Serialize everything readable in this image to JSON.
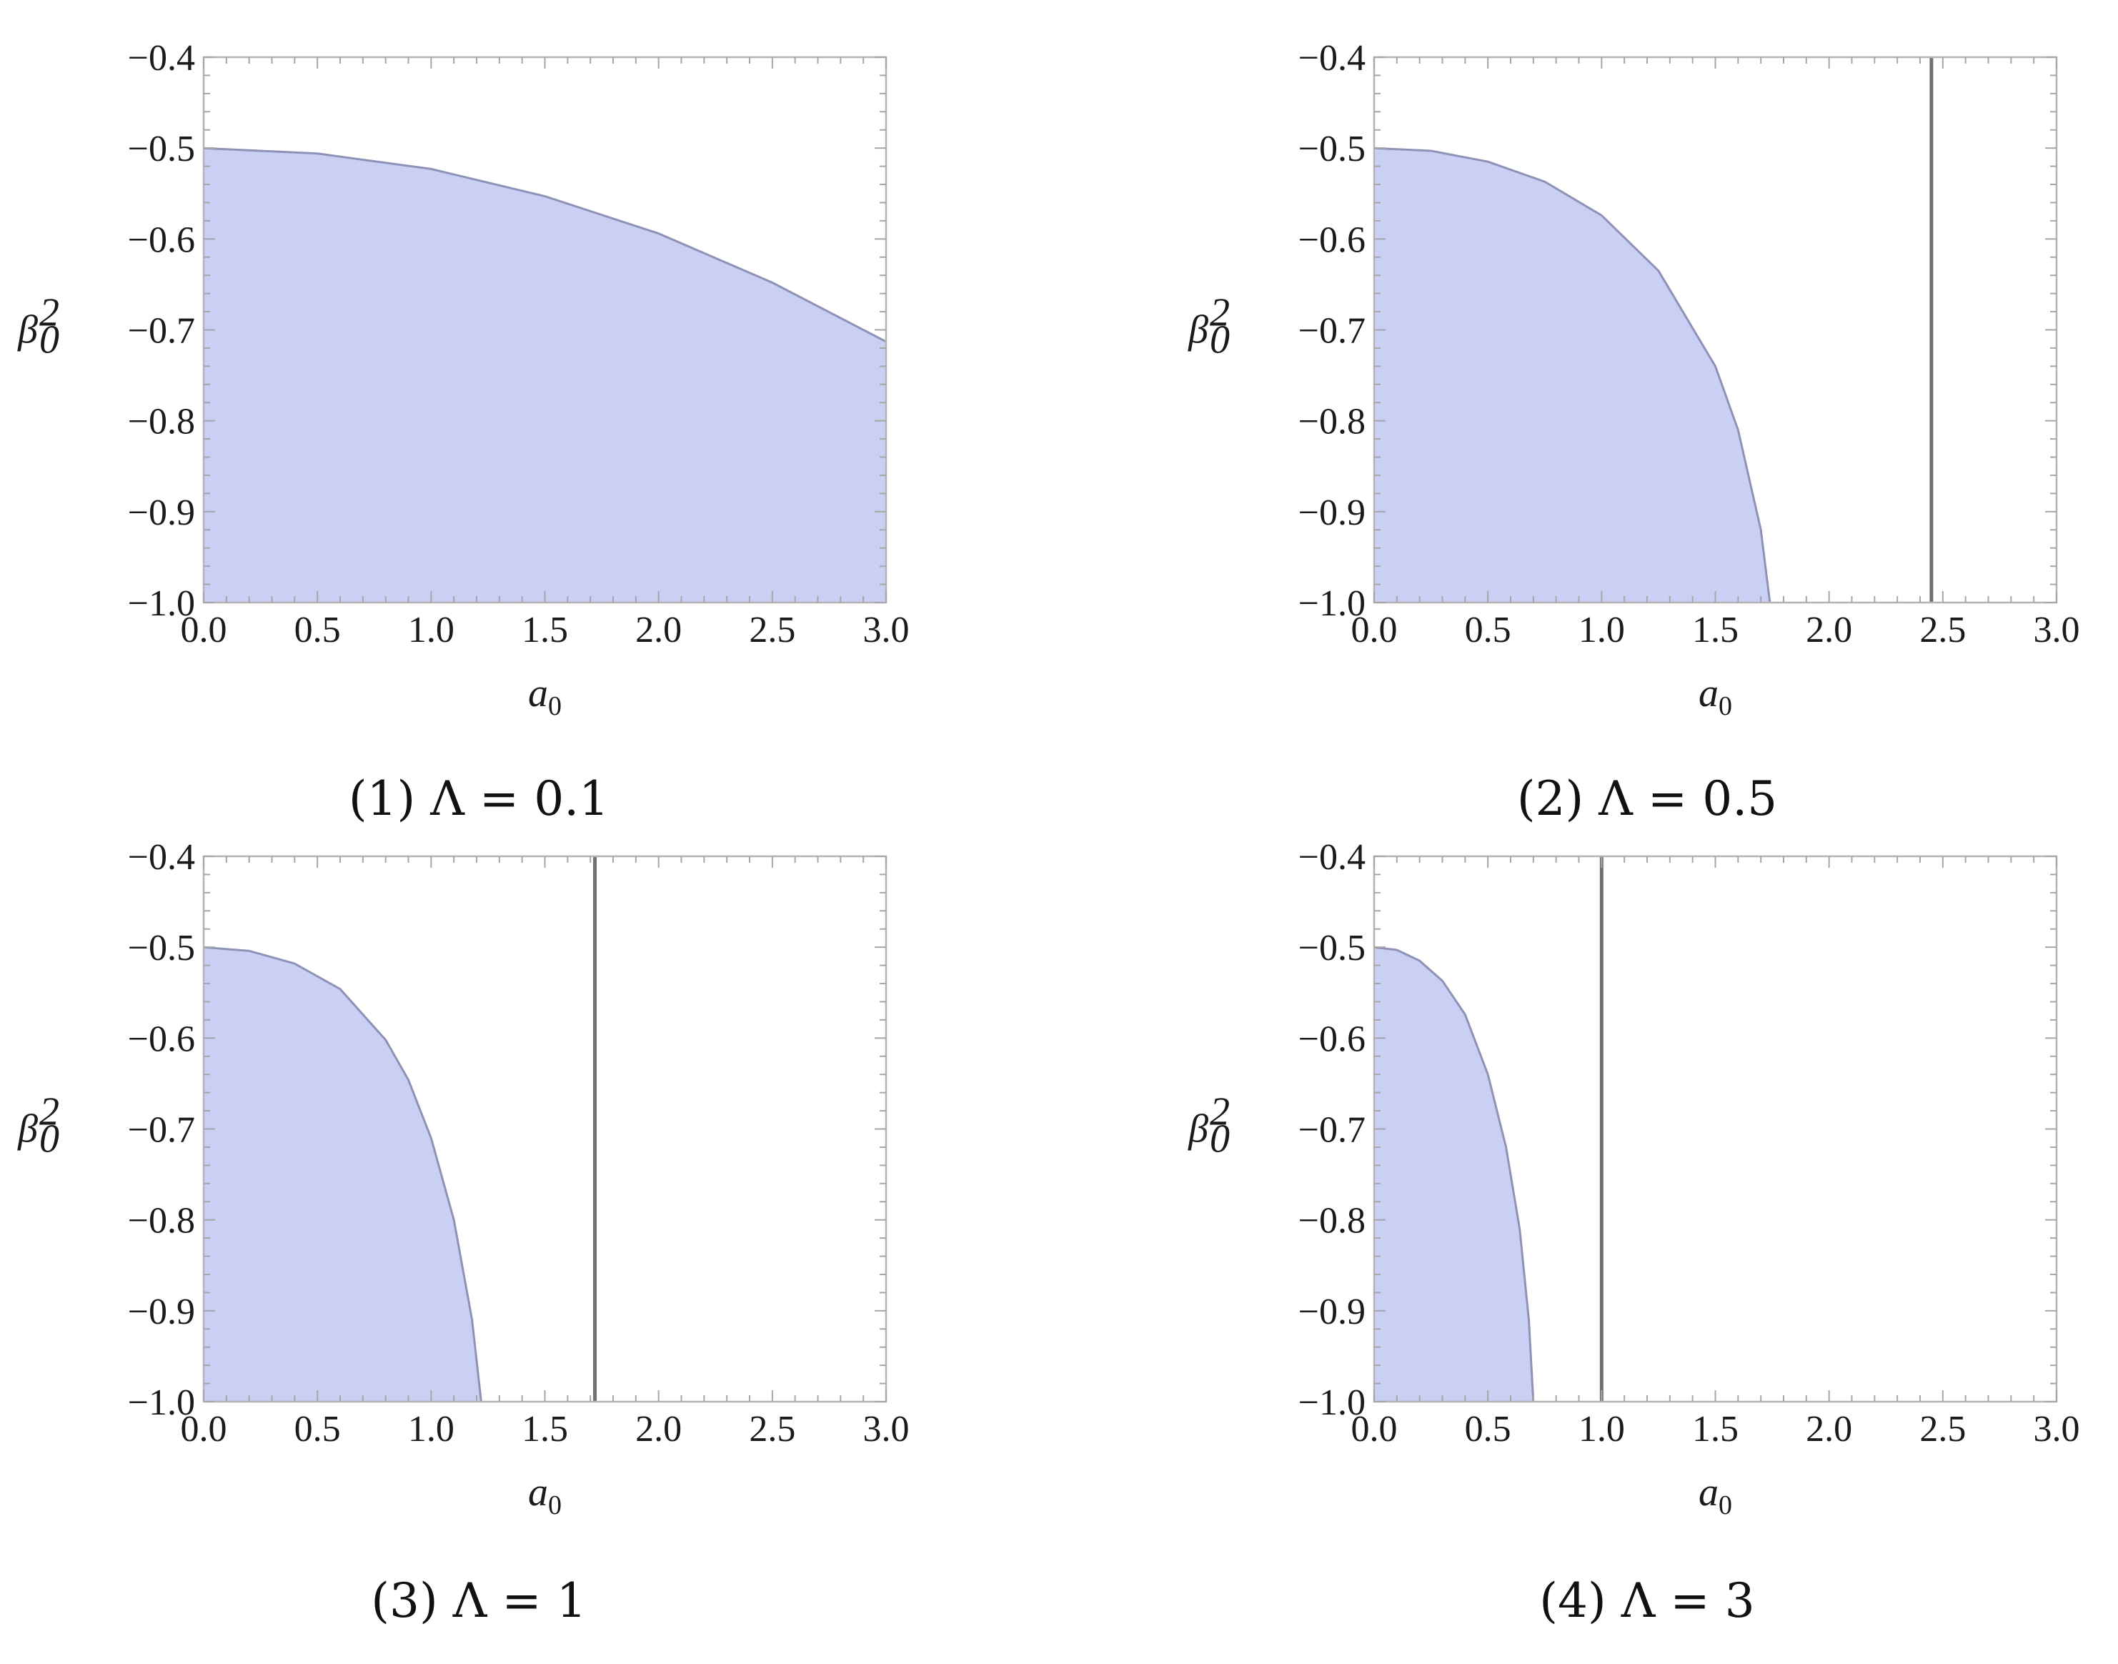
{
  "colors": {
    "region_fill": "#cacff4",
    "region_edge": "#8e92b8",
    "boundary_line": "#707070",
    "frame": "#b4b4b4",
    "tick": "#a6a6a6"
  },
  "chart_data": [
    {
      "type": "area",
      "caption": "(1) Λ = 0.1",
      "xlabel": {
        "base": "a",
        "sub": "0"
      },
      "ylabel": {
        "base": "β",
        "sub": "0",
        "sup": "2"
      },
      "xlim": [
        0,
        3
      ],
      "ylim": [
        -1.0,
        -0.4
      ],
      "x_ticks": [
        "0.0",
        "0.5",
        "1.0",
        "1.5",
        "2.0",
        "2.5",
        "3.0"
      ],
      "y_ticks": [
        "−0.4",
        "−0.5",
        "−0.6",
        "−0.7",
        "−0.8",
        "−0.9",
        "−1.0"
      ],
      "region_top": {
        "x": [
          0,
          0.5,
          1.0,
          1.5,
          2.0,
          2.5,
          3.0
        ],
        "y": [
          -0.5,
          -0.506,
          -0.523,
          -0.553,
          -0.594,
          -0.648,
          -0.713
        ]
      },
      "vertical_line_x": null
    },
    {
      "type": "area",
      "caption": "(2) Λ = 0.5",
      "xlabel": {
        "base": "a",
        "sub": "0"
      },
      "ylabel": {
        "base": "β",
        "sub": "0",
        "sup": "2"
      },
      "xlim": [
        0,
        3
      ],
      "ylim": [
        -1.0,
        -0.4
      ],
      "x_ticks": [
        "0.0",
        "0.5",
        "1.0",
        "1.5",
        "2.0",
        "2.5",
        "3.0"
      ],
      "y_ticks": [
        "−0.4",
        "−0.5",
        "−0.6",
        "−0.7",
        "−0.8",
        "−0.9",
        "−1.0"
      ],
      "region_top": {
        "x": [
          0,
          0.25,
          0.5,
          0.75,
          1.0,
          1.25,
          1.5,
          1.6,
          1.7,
          1.74
        ],
        "y": [
          -0.5,
          -0.503,
          -0.515,
          -0.537,
          -0.574,
          -0.635,
          -0.74,
          -0.81,
          -0.92,
          -1.0
        ]
      },
      "vertical_line_x": 2.45
    },
    {
      "type": "area",
      "caption": "(3) Λ = 1",
      "xlabel": {
        "base": "a",
        "sub": "0"
      },
      "ylabel": {
        "base": "β",
        "sub": "0",
        "sup": "2"
      },
      "xlim": [
        0,
        3
      ],
      "ylim": [
        -1.0,
        -0.4
      ],
      "x_ticks": [
        "0.0",
        "0.5",
        "1.0",
        "1.5",
        "2.0",
        "2.5",
        "3.0"
      ],
      "y_ticks": [
        "−0.4",
        "−0.5",
        "−0.6",
        "−0.7",
        "−0.8",
        "−0.9",
        "−1.0"
      ],
      "region_top": {
        "x": [
          0,
          0.2,
          0.4,
          0.6,
          0.8,
          0.9,
          1.0,
          1.1,
          1.18,
          1.22
        ],
        "y": [
          -0.5,
          -0.504,
          -0.518,
          -0.546,
          -0.602,
          -0.646,
          -0.71,
          -0.8,
          -0.91,
          -1.0
        ]
      },
      "vertical_line_x": 1.72
    },
    {
      "type": "area",
      "caption": "(4) Λ = 3",
      "xlabel": {
        "base": "a",
        "sub": "0"
      },
      "ylabel": {
        "base": "β",
        "sub": "0",
        "sup": "2"
      },
      "xlim": [
        0,
        3
      ],
      "ylim": [
        -1.0,
        -0.4
      ],
      "x_ticks": [
        "0.0",
        "0.5",
        "1.0",
        "1.5",
        "2.0",
        "2.5",
        "3.0"
      ],
      "y_ticks": [
        "−0.4",
        "−0.5",
        "−0.6",
        "−0.7",
        "−0.8",
        "−0.9",
        "−1.0"
      ],
      "region_top": {
        "x": [
          0,
          0.1,
          0.2,
          0.3,
          0.4,
          0.5,
          0.58,
          0.64,
          0.68,
          0.7
        ],
        "y": [
          -0.5,
          -0.503,
          -0.515,
          -0.537,
          -0.574,
          -0.64,
          -0.72,
          -0.81,
          -0.91,
          -1.0
        ]
      },
      "vertical_line_x": 1.0
    }
  ]
}
